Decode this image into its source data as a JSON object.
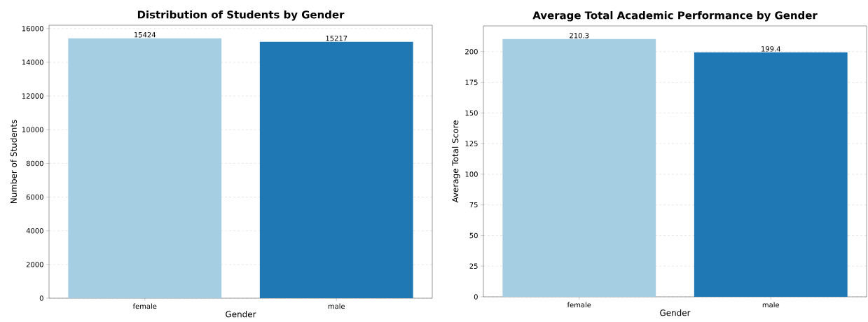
{
  "chart_data": [
    {
      "type": "bar",
      "title": "Distribution of Students by Gender",
      "xlabel": "Gender",
      "ylabel": "Number of Students",
      "categories": [
        "female",
        "male"
      ],
      "values": [
        15424,
        15217
      ],
      "colors": [
        "#a6cee3",
        "#1f78b4"
      ],
      "ylim": [
        0,
        16200
      ],
      "yticks": [
        0,
        2000,
        4000,
        6000,
        8000,
        10000,
        12000,
        14000,
        16000
      ],
      "grid": "y",
      "data_labels": true
    },
    {
      "type": "bar",
      "title": "Average Total Academic Performance by Gender",
      "xlabel": "Gender",
      "ylabel": "Average Total Score",
      "categories": [
        "female",
        "male"
      ],
      "values": [
        210.3,
        199.4
      ],
      "colors": [
        "#a6cee3",
        "#1f78b4"
      ],
      "ylim": [
        0,
        221
      ],
      "yticks": [
        0,
        25,
        50,
        75,
        100,
        125,
        150,
        175,
        200
      ],
      "grid": "y",
      "data_labels": true
    }
  ]
}
